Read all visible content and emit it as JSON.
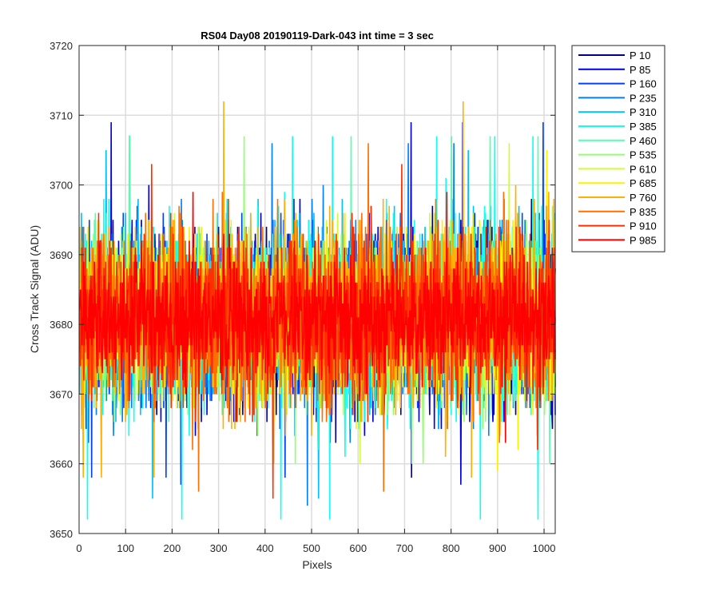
{
  "chart_data": {
    "type": "line",
    "title": "RS04 Day08 20190119-Dark-043 int time = 3 sec",
    "xlabel": "Pixels",
    "ylabel": "Cross Track Signal (ADU)",
    "xlim": [
      0,
      1024
    ],
    "ylim": [
      3650,
      3720
    ],
    "xticks": [
      0,
      100,
      200,
      300,
      400,
      500,
      600,
      700,
      800,
      900,
      1000
    ],
    "yticks": [
      3650,
      3660,
      3670,
      3680,
      3690,
      3700,
      3710,
      3720
    ],
    "grid": true,
    "legend_position": "outside-top-right",
    "x_range": [
      1,
      1024
    ],
    "series": [
      {
        "name": "P 10",
        "color": "#00008F",
        "mean": 3681,
        "min": 3658,
        "max": 3707
      },
      {
        "name": "P 85",
        "color": "#0000D9",
        "mean": 3681,
        "min": 3657,
        "max": 3709
      },
      {
        "name": "P 160",
        "color": "#0040FF",
        "mean": 3681,
        "min": 3658,
        "max": 3709
      },
      {
        "name": "P 235",
        "color": "#0080FF",
        "mean": 3681,
        "min": 3654,
        "max": 3706
      },
      {
        "name": "P 310",
        "color": "#00C0FF",
        "mean": 3681,
        "min": 3655,
        "max": 3705
      },
      {
        "name": "P 385",
        "color": "#10FFEF",
        "mean": 3681,
        "min": 3652,
        "max": 3707
      },
      {
        "name": "P 460",
        "color": "#50FFAF",
        "mean": 3681,
        "min": 3660,
        "max": 3707
      },
      {
        "name": "P 535",
        "color": "#90FF70",
        "mean": 3681,
        "min": 3660,
        "max": 3707
      },
      {
        "name": "P 610",
        "color": "#CFFF30",
        "mean": 3681,
        "min": 3660,
        "max": 3706
      },
      {
        "name": "P 685",
        "color": "#FFEF00",
        "mean": 3681,
        "min": 3659,
        "max": 3705
      },
      {
        "name": "P 760",
        "color": "#FFB000",
        "mean": 3681,
        "min": 3658,
        "max": 3712
      },
      {
        "name": "P 835",
        "color": "#FF7000",
        "mean": 3681,
        "min": 3656,
        "max": 3706
      },
      {
        "name": "P 910",
        "color": "#FF3000",
        "mean": 3681,
        "min": 3655,
        "max": 3703
      },
      {
        "name": "P 985",
        "color": "#FF0000",
        "mean": 3681,
        "min": 3663,
        "max": 3699
      }
    ]
  }
}
